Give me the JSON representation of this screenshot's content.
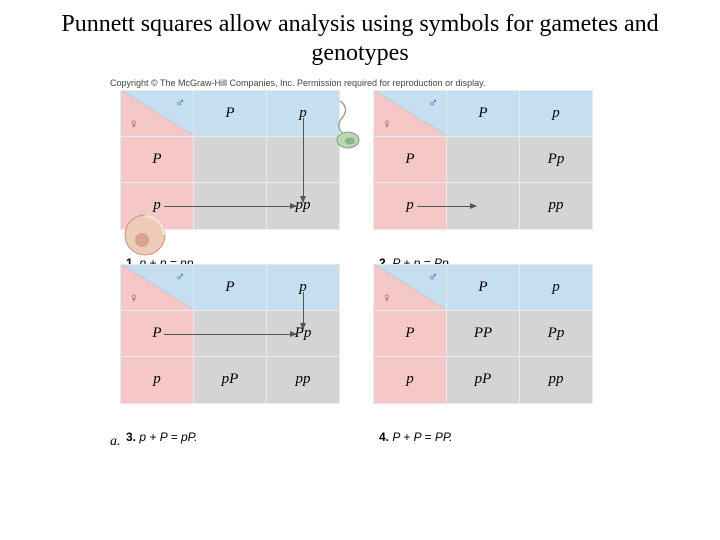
{
  "title": "Punnett squares allow analysis using symbols for gametes and genotypes",
  "copyright": "Copyright © The McGraw-Hill Companies, Inc. Permission required for reproduction or display.",
  "figure_label": "a.",
  "symbols": {
    "male": "♂",
    "female": "♀"
  },
  "colors": {
    "male_header": "#c6dff0",
    "female_header": "#f6c7c7",
    "cell": "#d4d4d4",
    "border": "#eaeaea",
    "arrow": "#555555",
    "male_symbol": "#2a5b8a",
    "female_symbol": "#a03a3a",
    "sperm_head": "#b9d7b0",
    "sperm_dark": "#6f8f6a",
    "egg_fill": "#eecbb6",
    "egg_dark": "#c4836a"
  },
  "gametes": {
    "dom": "P",
    "rec": "p"
  },
  "panels": [
    {
      "num": "1.",
      "caption_eq": "p + p = pp.",
      "highlight": {
        "col": "rec",
        "row": "rec"
      },
      "arrows": [
        "col",
        "row"
      ],
      "cells": {
        "PP": "",
        "Pp": "",
        "pP": "",
        "pp": "pp"
      }
    },
    {
      "num": "2.",
      "caption_eq": "P + p = Pp.",
      "highlight": {
        "col": "dom",
        "row": "rec"
      },
      "arrows": [
        "row"
      ],
      "cells": {
        "PP": "",
        "Pp": "Pp",
        "pP": "",
        "pp": "pp"
      }
    },
    {
      "num": "3.",
      "caption_eq": "p + P = pP.",
      "highlight": {
        "col": "rec",
        "row": "dom"
      },
      "arrows": [
        "col",
        "row"
      ],
      "cells": {
        "PP": "",
        "Pp": "Pp",
        "pP": "pP",
        "pp": "pp"
      }
    },
    {
      "num": "4.",
      "caption_eq": "P + P = PP.",
      "highlight": {
        "col": "dom",
        "row": "dom"
      },
      "arrows": [],
      "cells": {
        "PP": "PP",
        "Pp": "Pp",
        "pP": "pP",
        "pp": "pp"
      }
    }
  ]
}
